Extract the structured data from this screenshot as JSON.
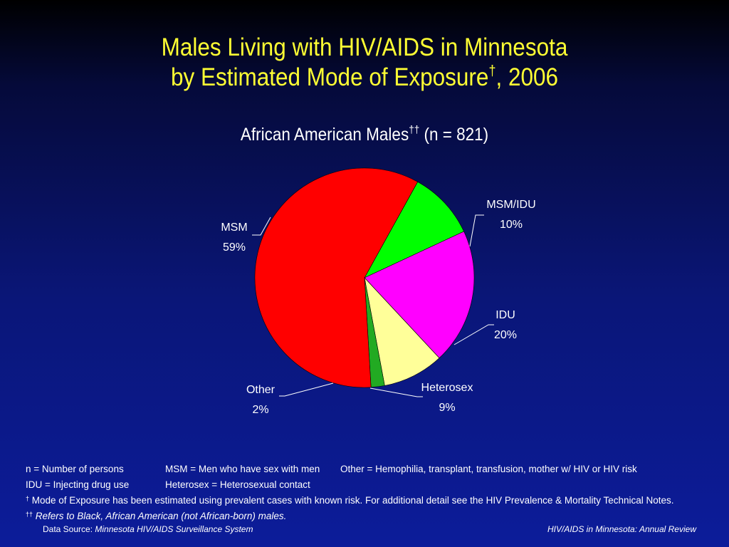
{
  "slide": {
    "title_line1": "Males Living with HIV/AIDS in Minnesota",
    "title_line2_pre": "by Estimated Mode of Exposure",
    "title_line2_sup": "†",
    "title_line2_post": ", 2006",
    "subtitle_pre": "African American Males",
    "subtitle_sup": "††",
    "subtitle_post": " (n = 821)"
  },
  "chart_data": {
    "type": "pie",
    "start_angle_deg": 61,
    "direction": "clockwise",
    "slices": [
      {
        "label": "MSM/IDU",
        "value": 10,
        "value_label": "10%",
        "color": "#00ff00"
      },
      {
        "label": "IDU",
        "value": 20,
        "value_label": "20%",
        "color": "#ff00ff"
      },
      {
        "label": "Heterosex",
        "value": 9,
        "value_label": "9%",
        "color": "#ffff99"
      },
      {
        "label": "Other",
        "value": 2,
        "value_label": "2%",
        "color": "#22aa22"
      },
      {
        "label": "MSM",
        "value": 59,
        "value_label": "59%",
        "color": "#ff0000"
      }
    ]
  },
  "notes": {
    "n_def": "n = Number of persons",
    "msm_def": "MSM = Men who have sex with men",
    "other_def": "Other = Hemophilia, transplant, transfusion, mother w/ HIV or HIV risk",
    "idu_def": "IDU = Injecting drug use",
    "hetero_def": "Heterosex = Heterosexual contact",
    "dagger_mark": "†",
    "dagger_text": "Mode of Exposure has been estimated using prevalent cases with known risk. For additional detail see the HIV Prevalence & Mortality Technical Notes.",
    "ddagger_mark": "††",
    "ddagger_text": "Refers to Black, African American (not African-born) males."
  },
  "footer": {
    "source_label": "Data Source:",
    "source_value": "Minnesota HIV/AIDS Surveillance System",
    "right_text": "HIV/AIDS in Minnesota: Annual Review"
  }
}
